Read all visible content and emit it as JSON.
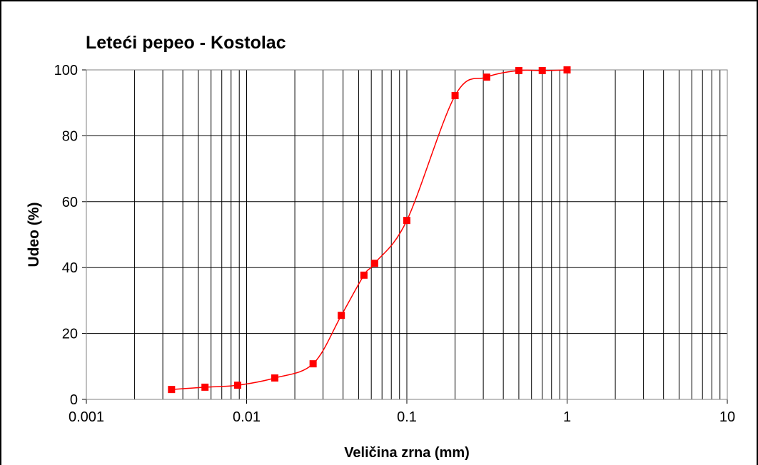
{
  "chart_data": {
    "type": "scatter",
    "title": "Leteći pepeo - Kostolac",
    "x_label": "Veličina zrna (mm)",
    "y_label": "Udeo (%)",
    "x": [
      0.0034,
      0.0055,
      0.0088,
      0.015,
      0.026,
      0.039,
      0.054,
      0.063,
      0.1,
      0.2,
      0.315,
      0.5,
      0.7,
      1
    ],
    "values": [
      3,
      3.7,
      4.3,
      6.5,
      10.8,
      25.5,
      37.7,
      41.3,
      54.3,
      92.2,
      97.8,
      99.8,
      99.8,
      100
    ],
    "color": "#ff0000",
    "marker": "square",
    "smooth": true,
    "xlog": true,
    "xlim": [
      0.001,
      10
    ],
    "xticks": [
      0.001,
      0.01,
      0.1,
      1,
      10
    ],
    "ylim": [
      0,
      100
    ],
    "yticks": [
      0,
      20,
      40,
      60,
      80,
      100
    ],
    "grid": true,
    "minor_grid": true
  }
}
